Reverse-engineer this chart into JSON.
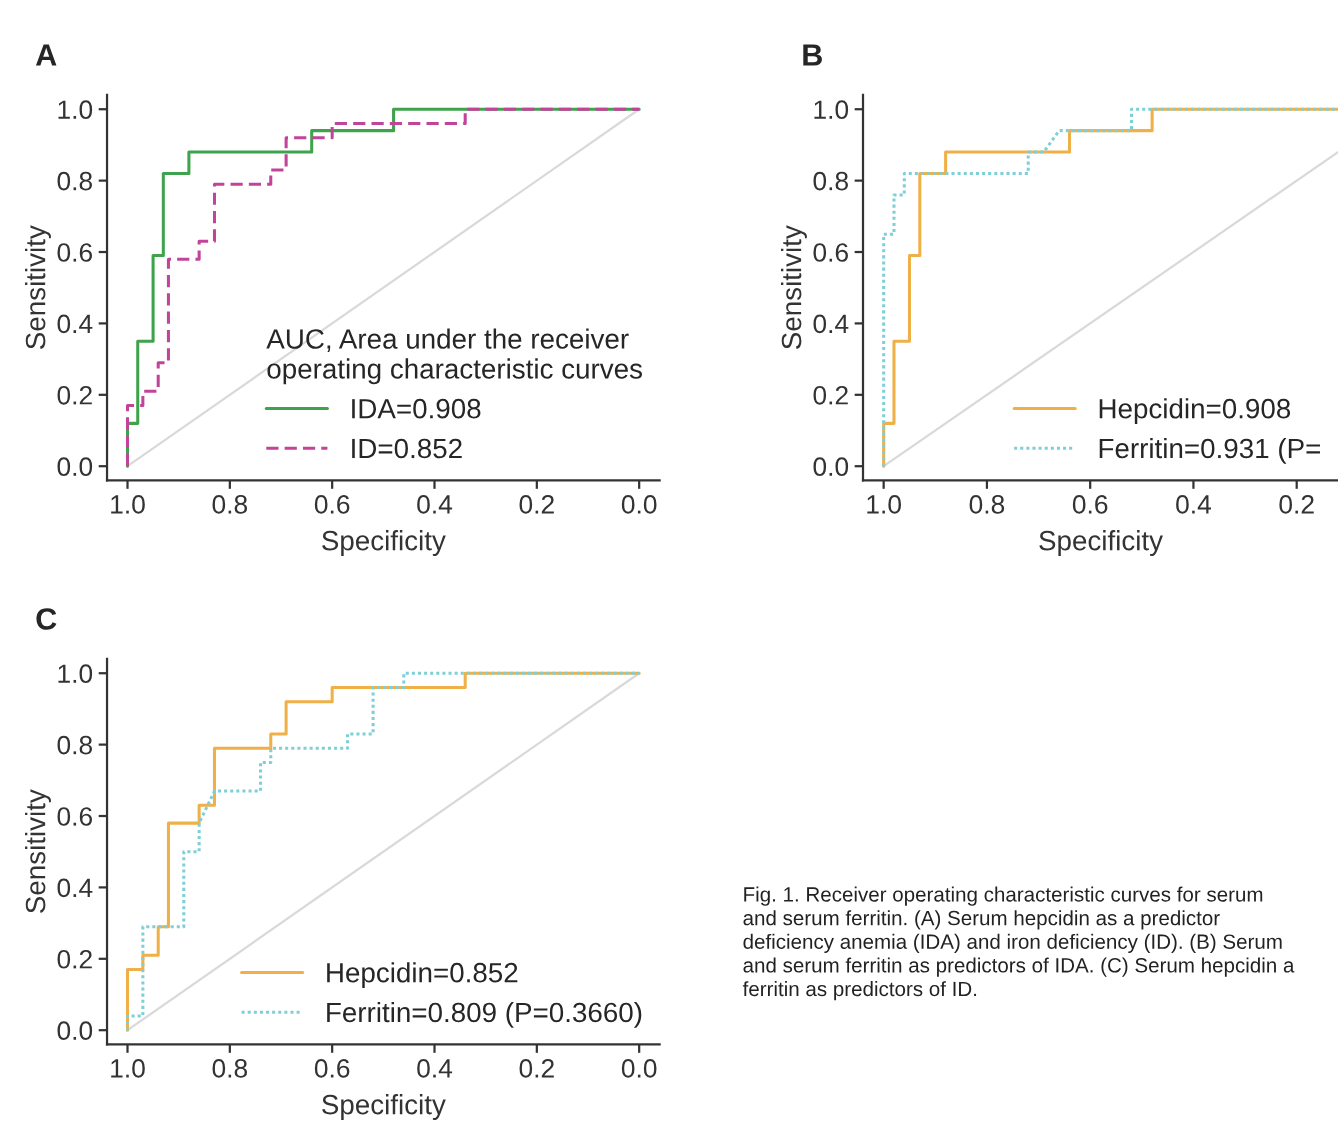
{
  "chart_data": [
    {
      "type": "line",
      "title": "A",
      "xlabel": "Specificity",
      "ylabel": "Sensitivity",
      "legend_title": "AUC, Area under the receiver\noperating characteristic curves",
      "legend": "bottom right",
      "grid": false,
      "marker": "none",
      "xlim": [
        1.04,
        -0.04
      ],
      "ylim": [
        -0.04,
        1.04
      ],
      "xticks": [
        {
          "value": 1.0,
          "label": "1.0"
        },
        {
          "value": 0.8,
          "label": "0.8"
        },
        {
          "value": 0.6,
          "label": "0.6"
        },
        {
          "value": 0.4,
          "label": "0.4"
        },
        {
          "value": 0.2,
          "label": "0.2"
        },
        {
          "value": 0.0,
          "label": "0.0"
        }
      ],
      "yticks": [
        {
          "value": 0.0,
          "label": "0.0"
        },
        {
          "value": 0.2,
          "label": "0.2"
        },
        {
          "value": 0.4,
          "label": "0.4"
        },
        {
          "value": 0.6,
          "label": "0.6"
        },
        {
          "value": 0.8,
          "label": "0.8"
        },
        {
          "value": 1.0,
          "label": "1.0"
        }
      ],
      "series": [
        {
          "color": "#d9d9d9",
          "line_style": "solid",
          "x": [
            1.0,
            0.0
          ],
          "values": [
            0.0,
            1.0
          ]
        },
        {
          "name": "IDA=0.908",
          "color": "#3fa34d",
          "line_style": "solid",
          "x": [
            1.0,
            1.0,
            0.98,
            0.98,
            0.95,
            0.95,
            0.93,
            0.93,
            0.88,
            0.88,
            0.64,
            0.64,
            0.48,
            0.48,
            0.0
          ],
          "values": [
            0.0,
            0.12,
            0.12,
            0.35,
            0.35,
            0.59,
            0.59,
            0.82,
            0.82,
            0.88,
            0.88,
            0.94,
            0.94,
            1.0,
            1.0
          ]
        },
        {
          "name": "ID=0.852",
          "color": "#c2449a",
          "line_style": "dashed",
          "x": [
            1.0,
            1.0,
            0.97,
            0.97,
            0.94,
            0.94,
            0.92,
            0.92,
            0.86,
            0.86,
            0.83,
            0.83,
            0.72,
            0.72,
            0.69,
            0.69,
            0.6,
            0.6,
            0.34,
            0.34,
            0.0
          ],
          "values": [
            0.0,
            0.17,
            0.17,
            0.21,
            0.21,
            0.29,
            0.29,
            0.58,
            0.58,
            0.63,
            0.63,
            0.79,
            0.79,
            0.83,
            0.83,
            0.92,
            0.92,
            0.96,
            0.96,
            1.0,
            1.0
          ]
        }
      ]
    },
    {
      "type": "line",
      "title": "B",
      "xlabel": "Specificity",
      "ylabel": "Sensitivity",
      "legend": "bottom right",
      "grid": false,
      "marker": "none",
      "xlim": [
        1.04,
        0.12
      ],
      "ylim": [
        -0.04,
        1.04
      ],
      "xticks": [
        {
          "value": 1.0,
          "label": "1.0"
        },
        {
          "value": 0.8,
          "label": "0.8"
        },
        {
          "value": 0.6,
          "label": "0.6"
        },
        {
          "value": 0.4,
          "label": "0.4"
        },
        {
          "value": 0.2,
          "label": "0.2"
        }
      ],
      "yticks": [
        {
          "value": 0.0,
          "label": "0.0"
        },
        {
          "value": 0.2,
          "label": "0.2"
        },
        {
          "value": 0.4,
          "label": "0.4"
        },
        {
          "value": 0.6,
          "label": "0.6"
        },
        {
          "value": 0.8,
          "label": "0.8"
        },
        {
          "value": 1.0,
          "label": "1.0"
        }
      ],
      "series": [
        {
          "color": "#d9d9d9",
          "line_style": "solid",
          "x": [
            1.0,
            0.12
          ],
          "values": [
            0.0,
            0.88
          ]
        },
        {
          "name": "Hepcidin=0.908",
          "color": "#f0b048",
          "line_style": "solid",
          "x": [
            1.0,
            1.0,
            0.98,
            0.98,
            0.95,
            0.95,
            0.93,
            0.93,
            0.88,
            0.88,
            0.64,
            0.64,
            0.48,
            0.48,
            0.12
          ],
          "values": [
            0.0,
            0.12,
            0.12,
            0.35,
            0.35,
            0.59,
            0.59,
            0.82,
            0.82,
            0.88,
            0.88,
            0.94,
            0.94,
            1.0,
            1.0
          ]
        },
        {
          "name": "Ferritin=0.931 (P=",
          "color": "#7fcfd8",
          "line_style": "dotted",
          "x": [
            1.0,
            1.0,
            0.98,
            0.98,
            0.96,
            0.96,
            0.72,
            0.72,
            0.69,
            0.66,
            0.52,
            0.52,
            0.12
          ],
          "values": [
            0.0,
            0.65,
            0.65,
            0.76,
            0.76,
            0.82,
            0.82,
            0.88,
            0.88,
            0.94,
            0.94,
            1.0,
            1.0
          ]
        }
      ]
    },
    {
      "type": "line",
      "title": "C",
      "xlabel": "Specificity",
      "ylabel": "Sensitivity",
      "legend": "bottom right",
      "grid": false,
      "marker": "none",
      "xlim": [
        1.04,
        -0.04
      ],
      "ylim": [
        -0.04,
        1.04
      ],
      "xticks": [
        {
          "value": 1.0,
          "label": "1.0"
        },
        {
          "value": 0.8,
          "label": "0.8"
        },
        {
          "value": 0.6,
          "label": "0.6"
        },
        {
          "value": 0.4,
          "label": "0.4"
        },
        {
          "value": 0.2,
          "label": "0.2"
        },
        {
          "value": 0.0,
          "label": "0.0"
        }
      ],
      "yticks": [
        {
          "value": 0.0,
          "label": "0.0"
        },
        {
          "value": 0.2,
          "label": "0.2"
        },
        {
          "value": 0.4,
          "label": "0.4"
        },
        {
          "value": 0.6,
          "label": "0.6"
        },
        {
          "value": 0.8,
          "label": "0.8"
        },
        {
          "value": 1.0,
          "label": "1.0"
        }
      ],
      "annotations": [
        "Fig. 1. Receiver operating characteristic curves for serum\nand serum ferritin. (A) Serum hepcidin as a predictor\ndeficiency anemia (IDA) and iron deficiency (ID). (B) Serum\nand serum ferritin as predictors of IDA. (C) Serum hepcidin a\nferritin as predictors of ID."
      ],
      "series": [
        {
          "color": "#d9d9d9",
          "line_style": "solid",
          "x": [
            1.0,
            0.0
          ],
          "values": [
            0.0,
            1.0
          ]
        },
        {
          "name": "Hepcidin=0.852",
          "color": "#f0b048",
          "line_style": "solid",
          "x": [
            1.0,
            1.0,
            0.97,
            0.97,
            0.94,
            0.94,
            0.92,
            0.92,
            0.86,
            0.86,
            0.83,
            0.83,
            0.72,
            0.72,
            0.69,
            0.69,
            0.6,
            0.6,
            0.34,
            0.34,
            0.0
          ],
          "values": [
            0.0,
            0.17,
            0.17,
            0.21,
            0.21,
            0.29,
            0.29,
            0.58,
            0.58,
            0.63,
            0.63,
            0.79,
            0.79,
            0.83,
            0.83,
            0.92,
            0.92,
            0.96,
            0.96,
            1.0,
            1.0
          ]
        },
        {
          "name": "Ferritin=0.809 (P=0.3660)",
          "color": "#7fcfd8",
          "line_style": "dotted",
          "x": [
            1.0,
            1.0,
            0.97,
            0.97,
            0.89,
            0.89,
            0.86,
            0.86,
            0.83,
            0.74,
            0.74,
            0.72,
            0.72,
            0.57,
            0.57,
            0.52,
            0.52,
            0.46,
            0.46,
            0.0
          ],
          "values": [
            0.0,
            0.04,
            0.04,
            0.29,
            0.29,
            0.5,
            0.5,
            0.58,
            0.67,
            0.67,
            0.75,
            0.75,
            0.79,
            0.79,
            0.83,
            0.83,
            0.96,
            0.96,
            1.0,
            1.0
          ]
        }
      ]
    }
  ]
}
